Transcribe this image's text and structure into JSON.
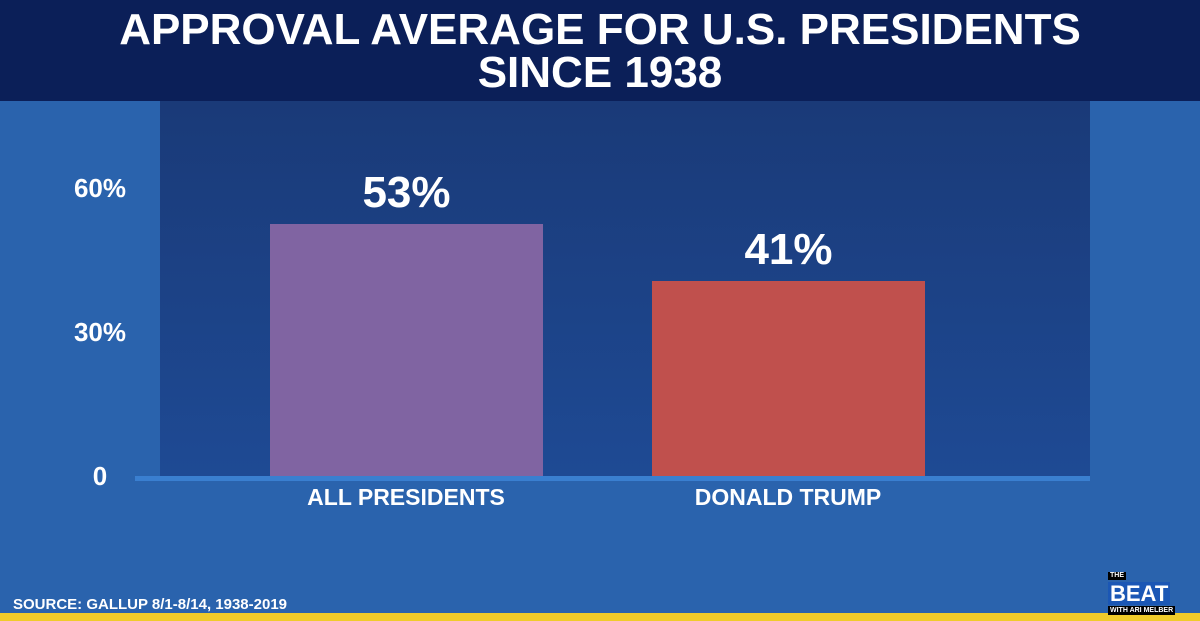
{
  "chart_data": {
    "type": "bar",
    "title": "APPROVAL AVERAGE FOR U.S. PRESIDENTS SINCE 1938",
    "categories": [
      "ALL PRESIDENTS",
      "DONALD TRUMP"
    ],
    "values": [
      53,
      41
    ],
    "value_labels": [
      "53%",
      "41%"
    ],
    "colors": [
      "#8064a2",
      "#c0504d"
    ],
    "yticks": [
      {
        "value": 0,
        "label": "0"
      },
      {
        "value": 30,
        "label": "30%"
      },
      {
        "value": 60,
        "label": "60%"
      }
    ],
    "ylim": [
      0,
      78
    ],
    "xlabel": "",
    "ylabel": ""
  },
  "title_lines": [
    "APPROVAL AVERAGE FOR U.S. PRESIDENTS",
    "SINCE 1938"
  ],
  "source": "SOURCE: GALLUP 8/1-8/14, 1938-2019",
  "logo": {
    "the": "THE",
    "beat": "BEAT",
    "with": "WITH ARI MELBER"
  }
}
